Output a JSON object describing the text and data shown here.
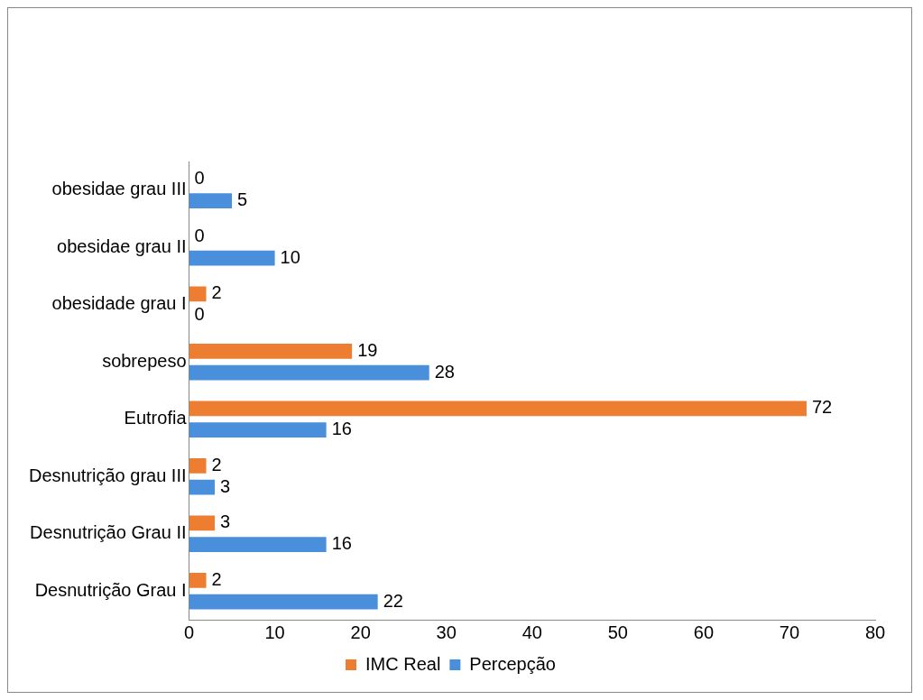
{
  "chart_data": {
    "type": "bar",
    "orientation": "horizontal",
    "categories": [
      "obesidae grau III",
      "obesidae grau II",
      "obesidade grau I",
      "sobrepeso",
      "Eutrofia",
      "Desnutrição grau III",
      "Desnutrição Grau II",
      "Desnutrição Grau I"
    ],
    "series": [
      {
        "name": "IMC Real",
        "color": "#ed7d31",
        "values": [
          0,
          0,
          2,
          19,
          72,
          2,
          3,
          2
        ]
      },
      {
        "name": "Percepção",
        "color": "#4a8fdc",
        "values": [
          5,
          10,
          0,
          28,
          16,
          3,
          16,
          22
        ]
      }
    ],
    "xlim": [
      0,
      80
    ],
    "xticks": [
      0,
      10,
      20,
      30,
      40,
      50,
      60,
      70,
      80
    ],
    "grid": false,
    "legend": "bottom",
    "data_labels": true
  }
}
